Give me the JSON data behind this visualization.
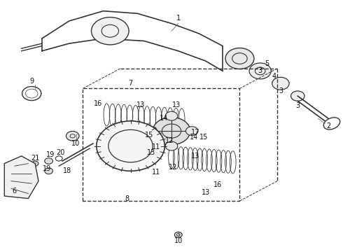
{
  "bg_color": "#ffffff",
  "fig_width": 4.9,
  "fig_height": 3.6,
  "dpi": 100,
  "line_color": "#333333",
  "text_color": "#111111",
  "label_fontsize": 7
}
